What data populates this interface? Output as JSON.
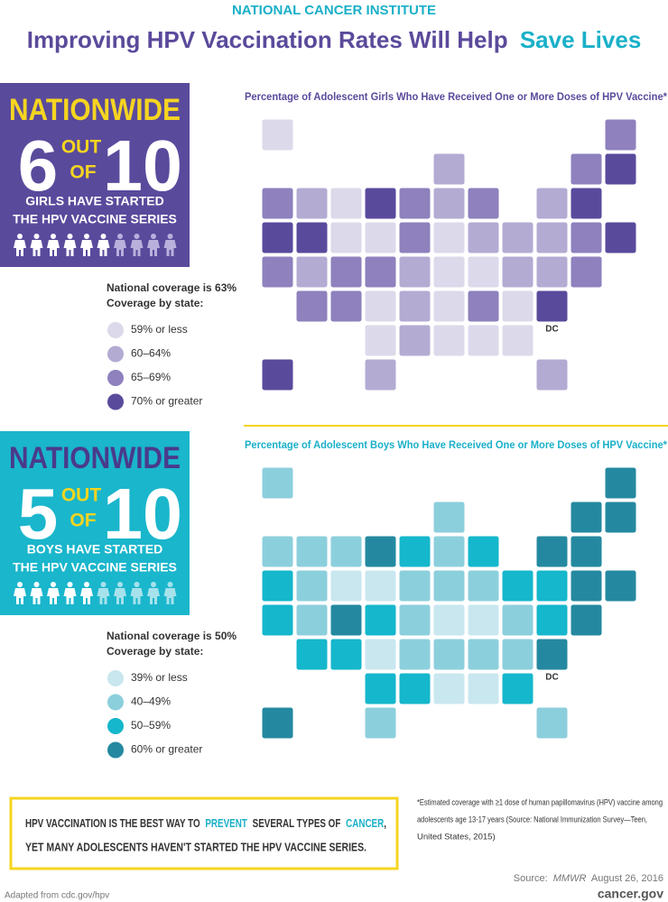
{
  "header": {
    "org": "NATIONAL CANCER INSTITUTE",
    "title_part1": "Improving HPV Vaccination Rates Will Help",
    "title_part2": "Save Lives"
  },
  "girls": {
    "banner": "NATIONWIDE",
    "count": "6",
    "out": "OUT",
    "of": "OF",
    "total": "10",
    "caption": [
      "GIRLS HAVE STARTED",
      "THE HPV VACCINE SERIES"
    ],
    "map_title": "Percentage of Adolescent Girls Who Have Received One or More Doses of HPV Vaccine*",
    "coverage": "National coverage is 63%",
    "legend_title": "Coverage by state:",
    "legend": [
      {
        "label": "59% or less",
        "color": "#dcd9eb"
      },
      {
        "label": "60–64%",
        "color": "#b4abd3"
      },
      {
        "label": "65–69%",
        "color": "#8e81bd"
      },
      {
        "label": "70% or greater",
        "color": "#5a4a9c"
      }
    ],
    "dc": "DC"
  },
  "boys": {
    "banner": "NATIONWIDE",
    "count": "5",
    "out": "OUT",
    "of": "OF",
    "total": "10",
    "caption": [
      "BOYS HAVE STARTED",
      "THE HPV VACCINE SERIES"
    ],
    "map_title": "Percentage of Adolescent Boys Who Have Received One or More Doses of HPV Vaccine*",
    "coverage": "National coverage is 50%",
    "legend_title": "Coverage by state:",
    "legend": [
      {
        "label": "39% or less",
        "color": "#c9e7ef"
      },
      {
        "label": "40–49%",
        "color": "#8ccfdc"
      },
      {
        "label": "50–59%",
        "color": "#15b7cc"
      },
      {
        "label": "60% or greater",
        "color": "#2489a0"
      }
    ],
    "dc": "DC"
  },
  "callout": {
    "line1": [
      "HPV VACCINATION IS THE BEST WAY TO",
      "PREVENT",
      "SEVERAL TYPES OF",
      "CANCER",
      ","
    ],
    "line2": "YET MANY ADOLESCENTS HAVEN'T STARTED THE HPV VACCINE SERIES."
  },
  "footnote": [
    "*Estimated coverage with ≥1 dose of human papillomavirus (HPV) vaccine among",
    "adolescents age 13-17 years (Source: National Immunization Survey—Teen,",
    "United States, 2015)"
  ],
  "source": {
    "label": "Source:",
    "publication": "MMWR",
    "date": "August 26, 2016"
  },
  "footer": {
    "left": "Adapted from cdc.gov/hpv",
    "right": "cancer.gov"
  }
}
